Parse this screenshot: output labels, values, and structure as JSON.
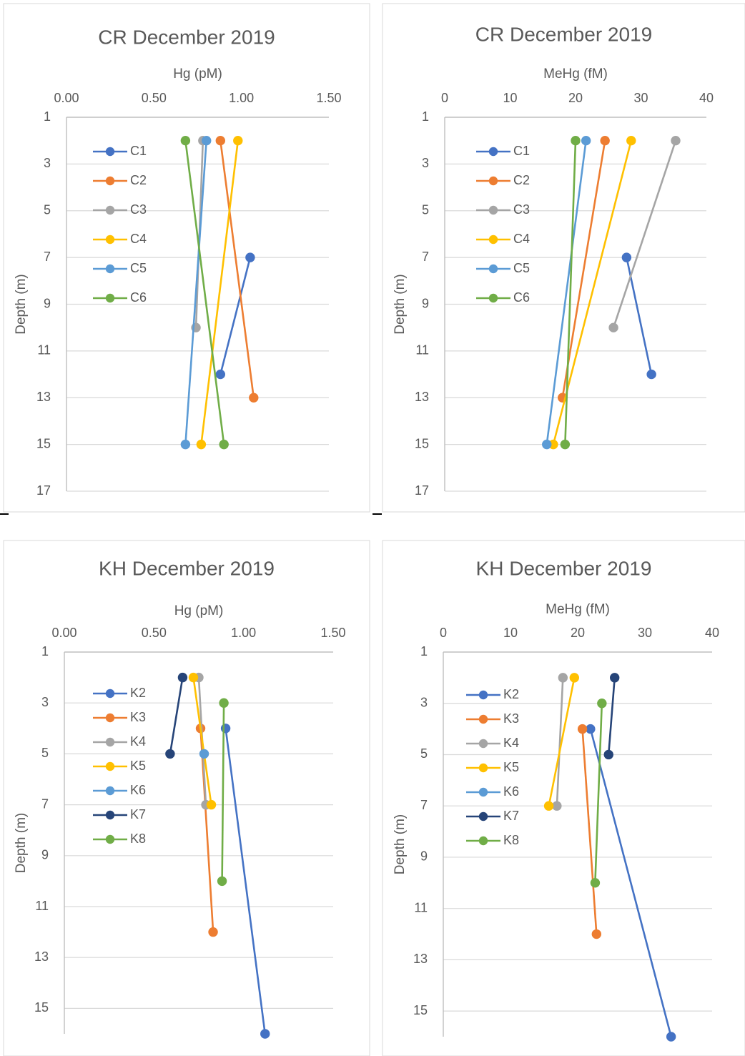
{
  "chart_data": [
    {
      "type": "scatter",
      "title": "CR December 2019",
      "xlabel": "Hg (pM)",
      "ylabel": "Depth (m)",
      "xlim": [
        0,
        1.5
      ],
      "xticks": [
        "0.00",
        "0.50",
        "1.00",
        "1.50"
      ],
      "ylim": [
        1,
        17
      ],
      "yticks": [
        "1",
        "3",
        "5",
        "7",
        "9",
        "11",
        "13",
        "15",
        "17"
      ],
      "y_reversed": true,
      "grid": "horizontal",
      "legend": "left",
      "series": [
        {
          "name": "C1",
          "color": "#4472C4",
          "points": [
            [
              1.05,
              7
            ],
            [
              0.88,
              12
            ]
          ]
        },
        {
          "name": "C2",
          "color": "#ED7D31",
          "points": [
            [
              0.88,
              2
            ],
            [
              1.07,
              13
            ]
          ]
        },
        {
          "name": "C3",
          "color": "#A5A5A5",
          "points": [
            [
              0.78,
              2
            ],
            [
              0.74,
              10
            ]
          ]
        },
        {
          "name": "C4",
          "color": "#FFC000",
          "points": [
            [
              0.98,
              2
            ],
            [
              0.77,
              15
            ]
          ]
        },
        {
          "name": "C5",
          "color": "#5B9BD5",
          "points": [
            [
              0.8,
              2
            ],
            [
              0.68,
              15
            ]
          ]
        },
        {
          "name": "C6",
          "color": "#70AD47",
          "points": [
            [
              0.68,
              2
            ],
            [
              0.9,
              15
            ]
          ]
        }
      ]
    },
    {
      "type": "scatter",
      "title": "CR December 2019",
      "xlabel": "MeHg (fM)",
      "ylabel": "Depth (m)",
      "xlim": [
        0,
        40
      ],
      "xticks": [
        "0",
        "10",
        "20",
        "30",
        "40"
      ],
      "ylim": [
        1,
        17
      ],
      "yticks": [
        "1",
        "3",
        "5",
        "7",
        "9",
        "11",
        "13",
        "15",
        "17"
      ],
      "y_reversed": true,
      "grid": "horizontal",
      "legend": "left",
      "series": [
        {
          "name": "C1",
          "color": "#4472C4",
          "points": [
            [
              27.8,
              7
            ],
            [
              31.6,
              12
            ]
          ]
        },
        {
          "name": "C2",
          "color": "#ED7D31",
          "points": [
            [
              24.5,
              2
            ],
            [
              18.0,
              13
            ]
          ]
        },
        {
          "name": "C3",
          "color": "#A5A5A5",
          "points": [
            [
              35.3,
              2
            ],
            [
              25.8,
              10
            ]
          ]
        },
        {
          "name": "C4",
          "color": "#FFC000",
          "points": [
            [
              28.5,
              2
            ],
            [
              16.6,
              15
            ]
          ]
        },
        {
          "name": "C5",
          "color": "#5B9BD5",
          "points": [
            [
              21.6,
              2
            ],
            [
              15.6,
              15
            ]
          ]
        },
        {
          "name": "C6",
          "color": "#70AD47",
          "points": [
            [
              20.0,
              2
            ],
            [
              18.4,
              15
            ]
          ]
        }
      ]
    },
    {
      "type": "scatter",
      "title": "KH December 2019",
      "xlabel": "Hg (pM)",
      "ylabel": "Depth (m)",
      "xlim": [
        0,
        1.5
      ],
      "xticks": [
        "0.00",
        "0.50",
        "1.00",
        "1.50"
      ],
      "ylim": [
        1,
        16
      ],
      "yticks": [
        "1",
        "3",
        "5",
        "7",
        "9",
        "11",
        "13",
        "15"
      ],
      "y_reversed": true,
      "grid": "horizontal",
      "legend": "left",
      "series": [
        {
          "name": "K2",
          "color": "#4472C4",
          "points": [
            [
              0.9,
              4
            ],
            [
              1.12,
              16
            ]
          ]
        },
        {
          "name": "K3",
          "color": "#ED7D31",
          "points": [
            [
              0.76,
              4
            ],
            [
              0.83,
              12
            ]
          ]
        },
        {
          "name": "K4",
          "color": "#A5A5A5",
          "points": [
            [
              0.75,
              2
            ],
            [
              0.79,
              7
            ]
          ]
        },
        {
          "name": "K5",
          "color": "#FFC000",
          "points": [
            [
              0.72,
              2
            ],
            [
              0.82,
              7
            ]
          ]
        },
        {
          "name": "K6",
          "color": "#5B9BD5",
          "points": [
            [
              0.78,
              5
            ]
          ]
        },
        {
          "name": "K7",
          "color": "#264478",
          "points": [
            [
              0.66,
              2
            ],
            [
              0.59,
              5
            ]
          ]
        },
        {
          "name": "K8",
          "color": "#70AD47",
          "points": [
            [
              0.89,
              3
            ],
            [
              0.88,
              10
            ]
          ]
        }
      ]
    },
    {
      "type": "scatter",
      "title": "KH December 2019",
      "xlabel": "MeHg (fM)",
      "ylabel": "Depth (m)",
      "xlim": [
        0,
        40
      ],
      "xticks": [
        "0",
        "10",
        "20",
        "30",
        "40"
      ],
      "ylim": [
        1,
        16
      ],
      "yticks": [
        "1",
        "3",
        "5",
        "7",
        "9",
        "11",
        "13",
        "15"
      ],
      "y_reversed": true,
      "grid": "horizontal",
      "legend": "left",
      "series": [
        {
          "name": "K2",
          "color": "#4472C4",
          "points": [
            [
              21.9,
              4
            ],
            [
              33.9,
              16
            ]
          ]
        },
        {
          "name": "K3",
          "color": "#ED7D31",
          "points": [
            [
              20.7,
              4
            ],
            [
              22.8,
              12
            ]
          ]
        },
        {
          "name": "K4",
          "color": "#A5A5A5",
          "points": [
            [
              17.8,
              2
            ],
            [
              16.9,
              7
            ]
          ]
        },
        {
          "name": "K5",
          "color": "#FFC000",
          "points": [
            [
              19.5,
              2
            ],
            [
              15.7,
              7
            ]
          ]
        },
        {
          "name": "K6",
          "color": "#5B9BD5",
          "points": []
        },
        {
          "name": "K7",
          "color": "#264478",
          "points": [
            [
              25.5,
              2
            ],
            [
              24.6,
              5
            ]
          ]
        },
        {
          "name": "K8",
          "color": "#70AD47",
          "points": [
            [
              23.6,
              3
            ],
            [
              22.6,
              10
            ]
          ]
        }
      ]
    }
  ]
}
